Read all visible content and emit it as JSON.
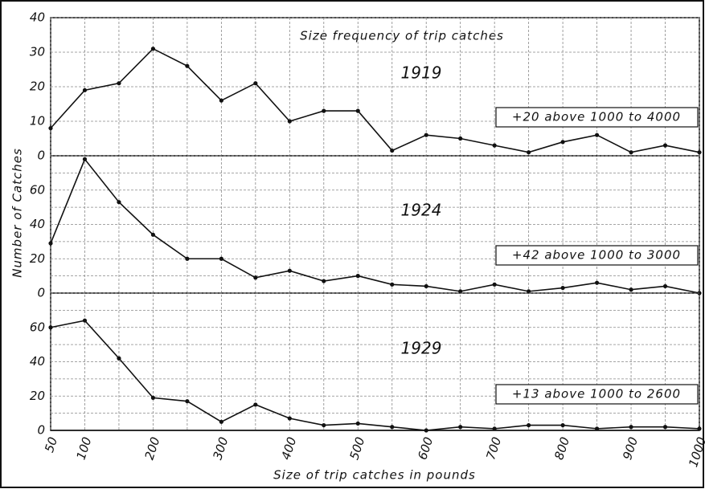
{
  "chart_data": {
    "type": "line",
    "title": "Size frequency of trip catches",
    "xlabel": "Size of trip catches in pounds",
    "ylabel": "Number of Catches",
    "x": [
      50,
      100,
      150,
      200,
      250,
      300,
      350,
      400,
      450,
      500,
      550,
      600,
      650,
      700,
      750,
      800,
      850,
      900,
      950,
      1000
    ],
    "xlim": [
      50,
      1000
    ],
    "xticks": [
      50,
      100,
      200,
      300,
      400,
      500,
      600,
      700,
      800,
      900,
      1000
    ],
    "xgrid": [
      50,
      100,
      150,
      200,
      250,
      300,
      350,
      400,
      450,
      500,
      550,
      600,
      650,
      700,
      750,
      800,
      850,
      900,
      950,
      1000
    ],
    "color": "#111111",
    "panels": [
      {
        "label": "1919",
        "annotation": "+20 above 1000 to 4000",
        "values": [
          8,
          19,
          21,
          31,
          26,
          16,
          21,
          10,
          13,
          13,
          1.5,
          6,
          5,
          3,
          1,
          4,
          6,
          1,
          3,
          1
        ],
        "ylim": [
          0,
          40
        ],
        "yticks": [
          0,
          10,
          20,
          30,
          40
        ],
        "ygrid": [
          0,
          10,
          20,
          30,
          40
        ]
      },
      {
        "label": "1924",
        "annotation": "+42 above 1000 to 3000",
        "values": [
          29,
          78,
          53,
          34,
          20,
          20,
          9,
          13,
          7,
          10,
          5,
          4,
          1,
          5,
          1,
          3,
          6,
          2,
          4,
          0
        ],
        "ylim": [
          0,
          80
        ],
        "yticks": [
          0,
          20,
          40,
          60
        ],
        "ygrid": [
          0,
          10,
          20,
          30,
          40,
          50,
          60,
          70,
          80
        ]
      },
      {
        "label": "1929",
        "annotation": "+13 above 1000 to 2600",
        "values": [
          60,
          64,
          42,
          19,
          17,
          5,
          15,
          7,
          3,
          4,
          2,
          0,
          2,
          1,
          3,
          3,
          1,
          2,
          2,
          1
        ],
        "ylim": [
          0,
          80
        ],
        "yticks": [
          0,
          20,
          40,
          60
        ],
        "ygrid": [
          0,
          10,
          20,
          30,
          40,
          50,
          60,
          70,
          80
        ]
      }
    ]
  }
}
